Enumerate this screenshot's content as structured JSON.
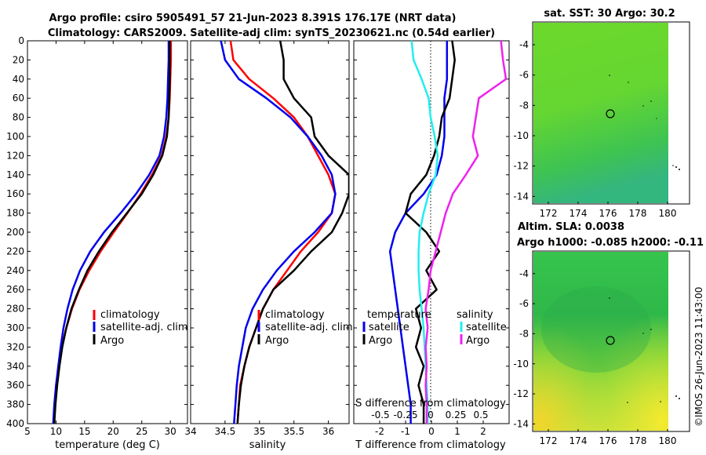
{
  "titles": {
    "line1": "Argo profile: csiro 5905491_57 21-Jun-2023 8.391S 176.17E (NRT data)",
    "line2": "Climatology: CARS2009. Satellite-adj clim: synTS_20230621.nc (0.54d earlier)",
    "sst": "sat. SST: 30 Argo: 30.2",
    "sla1": "Altim. SLA: 0.0038",
    "sla2": "Argo h1000: -0.085 h2000: -0.11"
  },
  "watermark": "©IMOS 26-Jun-2023 11:43:00",
  "colors": {
    "climatology": "#ff0000",
    "satellite": "#0000ee",
    "argo": "#000000",
    "sal_satellite": "#22eeee",
    "sal_argo": "#ee22ee"
  },
  "legends": {
    "temp": [
      "climatology",
      "satellite-adj. clim",
      "Argo"
    ],
    "sal": [
      "climatology",
      "satellite-adj. clim",
      "Argo"
    ],
    "diff_temp_header": "temperature",
    "diff_sal_header": "salinity",
    "diff_items": [
      "satellite",
      "Argo"
    ]
  },
  "chart_data": [
    {
      "type": "line",
      "name": "temperature",
      "xlabel": "temperature (deg C)",
      "xlim": [
        5,
        33
      ],
      "ylim": [
        0,
        400
      ],
      "xticks": [
        5,
        10,
        15,
        20,
        25,
        30
      ],
      "yticks": [
        0,
        20,
        40,
        60,
        80,
        100,
        120,
        140,
        160,
        180,
        200,
        220,
        240,
        260,
        280,
        300,
        320,
        340,
        360,
        380,
        400
      ],
      "series": [
        {
          "name": "climatology",
          "depth": [
            0,
            20,
            40,
            60,
            80,
            100,
            120,
            140,
            160,
            180,
            200,
            220,
            240,
            260,
            280,
            300,
            320,
            340,
            360,
            380,
            400
          ],
          "values": [
            30.1,
            30.1,
            30.0,
            29.9,
            29.7,
            29.3,
            28.5,
            26.8,
            24.8,
            22.5,
            20.1,
            17.8,
            15.8,
            14.1,
            12.8,
            11.8,
            11.0,
            10.5,
            10.1,
            9.8,
            9.6
          ]
        },
        {
          "name": "satellite-adj. clim",
          "depth": [
            0,
            20,
            40,
            60,
            80,
            100,
            120,
            140,
            160,
            180,
            200,
            220,
            240,
            260,
            280,
            300,
            320,
            340,
            360,
            380,
            400
          ],
          "values": [
            29.7,
            29.7,
            29.6,
            29.5,
            29.3,
            28.9,
            28.1,
            26.3,
            24.0,
            21.3,
            18.4,
            16.0,
            14.2,
            12.9,
            12.0,
            11.3,
            10.8,
            10.4,
            10.0,
            9.7,
            9.5
          ]
        },
        {
          "name": "Argo",
          "depth": [
            0,
            20,
            40,
            60,
            80,
            100,
            120,
            140,
            160,
            180,
            200,
            220,
            240,
            260,
            280,
            300,
            320,
            340,
            360,
            380,
            400
          ],
          "values": [
            29.9,
            29.9,
            29.9,
            29.8,
            29.7,
            29.4,
            28.6,
            27.0,
            25.0,
            22.4,
            19.8,
            17.5,
            15.5,
            14.0,
            12.7,
            11.8,
            11.1,
            10.6,
            10.2,
            9.9,
            9.7
          ]
        }
      ]
    },
    {
      "type": "line",
      "name": "salinity",
      "xlabel": "salinity",
      "xlim": [
        34,
        36.3
      ],
      "ylim": [
        0,
        400
      ],
      "xticks": [
        34,
        34.5,
        35,
        35.5,
        36
      ],
      "xtick_labels": [
        "34",
        "34.5",
        "35",
        "35.5",
        "36"
      ],
      "series": [
        {
          "name": "climatology",
          "depth": [
            0,
            20,
            40,
            60,
            80,
            100,
            120,
            140,
            160,
            180,
            200,
            220,
            240,
            260,
            280,
            300,
            320,
            340,
            360,
            380,
            400
          ],
          "values": [
            34.58,
            34.62,
            34.85,
            35.2,
            35.5,
            35.7,
            35.85,
            36.0,
            36.1,
            36.05,
            35.85,
            35.6,
            35.4,
            35.2,
            35.05,
            34.95,
            34.85,
            34.78,
            34.72,
            34.7,
            34.68
          ]
        },
        {
          "name": "satellite-adj. clim",
          "depth": [
            0,
            20,
            40,
            60,
            80,
            100,
            120,
            140,
            160,
            180,
            200,
            220,
            240,
            260,
            280,
            300,
            320,
            340,
            360,
            380,
            400
          ],
          "values": [
            34.44,
            34.5,
            34.7,
            35.1,
            35.45,
            35.7,
            35.9,
            36.05,
            36.1,
            36.05,
            35.8,
            35.5,
            35.25,
            35.05,
            34.9,
            34.8,
            34.75,
            34.7,
            34.67,
            34.65,
            34.63
          ]
        },
        {
          "name": "Argo",
          "depth": [
            0,
            20,
            40,
            60,
            80,
            100,
            120,
            140,
            160,
            180,
            200,
            220,
            240,
            260,
            280,
            300,
            320,
            340,
            360,
            380,
            400
          ],
          "values": [
            35.3,
            35.35,
            35.35,
            35.5,
            35.75,
            35.8,
            36.0,
            36.3,
            36.3,
            36.2,
            36.05,
            35.75,
            35.5,
            35.2,
            35.05,
            34.95,
            34.85,
            34.78,
            34.73,
            34.7,
            34.68
          ]
        }
      ]
    },
    {
      "type": "line",
      "name": "differences",
      "xlabel": "T difference from climatology",
      "xlim": [
        -3,
        3
      ],
      "ylim": [
        0,
        400
      ],
      "xticks": [
        -2,
        -1,
        0,
        1,
        2
      ],
      "top_axis_label": "S difference from climatology",
      "top_ticks": [
        "-0.5",
        "-0.25",
        "0",
        "0.25",
        "0.5"
      ],
      "series": [
        {
          "name": "temperature satellite",
          "depth": [
            0,
            20,
            40,
            60,
            80,
            100,
            120,
            140,
            160,
            180,
            200,
            220,
            240,
            260,
            280,
            300,
            320,
            340,
            360,
            380,
            400
          ],
          "values": [
            0.6,
            0.6,
            0.6,
            0.5,
            0.5,
            0.5,
            0.4,
            0.2,
            -0.3,
            -1.0,
            -1.4,
            -1.6,
            -1.5,
            -1.4,
            -1.3,
            -1.2,
            -1.1,
            -1.0,
            -0.9,
            -0.8,
            -0.8
          ]
        },
        {
          "name": "temperature Argo",
          "depth": [
            0,
            20,
            40,
            60,
            80,
            100,
            120,
            140,
            160,
            180,
            200,
            220,
            240,
            260,
            280,
            300,
            320,
            340,
            360,
            380,
            400
          ],
          "values": [
            0.8,
            0.9,
            0.8,
            0.7,
            0.4,
            0.3,
            0.1,
            -0.2,
            -0.8,
            -1.0,
            -0.2,
            0.3,
            -0.2,
            0.2,
            -0.6,
            -0.4,
            -0.6,
            -0.3,
            -0.5,
            -0.3,
            -0.3
          ]
        },
        {
          "name": "salinity satellite",
          "depth": [
            0,
            20,
            40,
            60,
            80,
            100,
            120,
            140,
            160,
            180,
            200,
            220,
            240,
            260,
            280,
            300,
            320,
            340,
            360,
            380,
            400
          ],
          "values": [
            -0.19,
            -0.17,
            -0.09,
            -0.02,
            0.0,
            0.04,
            0.07,
            0.05,
            -0.02,
            -0.07,
            -0.11,
            -0.12,
            -0.12,
            -0.11,
            -0.09,
            -0.07,
            -0.06,
            -0.05,
            -0.04,
            -0.03,
            -0.03
          ]
        },
        {
          "name": "salinity Argo",
          "depth": [
            0,
            20,
            40,
            60,
            80,
            100,
            120,
            140,
            160,
            180,
            200,
            220,
            240,
            260,
            280,
            300,
            320,
            340,
            360,
            380,
            400
          ],
          "values": [
            0.7,
            0.72,
            0.75,
            0.48,
            0.45,
            0.42,
            0.47,
            0.35,
            0.22,
            0.15,
            0.1,
            0.05,
            0.0,
            -0.02,
            -0.05,
            -0.03,
            -0.05,
            -0.04,
            -0.05,
            -0.04,
            -0.04
          ]
        }
      ]
    },
    {
      "type": "heatmap",
      "name": "sst_map",
      "title": "sat. SST: 30 Argo: 30.2",
      "xlim": [
        171,
        181
      ],
      "ylim": [
        -14.5,
        -2.5
      ],
      "xticks": [
        172,
        174,
        176,
        178,
        180
      ],
      "yticks": [
        -4,
        -6,
        -8,
        -10,
        -12,
        -14
      ],
      "marker": {
        "lon": 176.17,
        "lat": -8.391
      }
    },
    {
      "type": "heatmap",
      "name": "sla_map",
      "title": "Altim. SLA: 0.0038",
      "xlim": [
        171,
        181
      ],
      "ylim": [
        -14.5,
        -2.5
      ],
      "xticks": [
        172,
        174,
        176,
        178,
        180
      ],
      "yticks": [
        -4,
        -6,
        -8,
        -10,
        -12,
        -14
      ],
      "marker": {
        "lon": 176.17,
        "lat": -8.391
      }
    }
  ]
}
